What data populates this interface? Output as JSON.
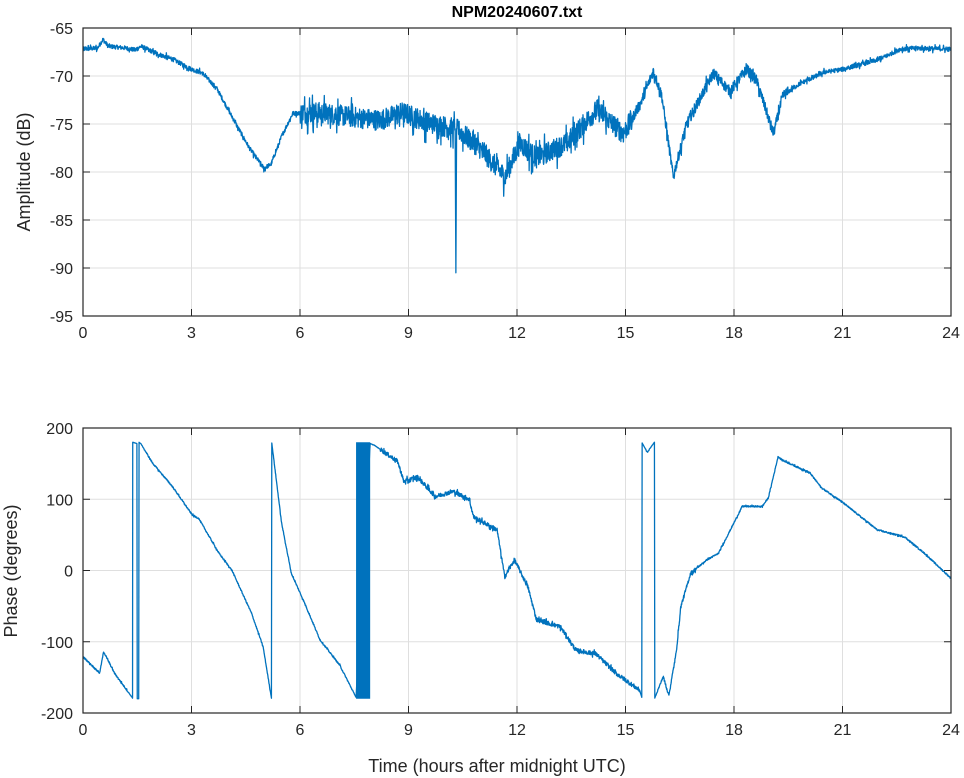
{
  "chart_data": [
    {
      "type": "line",
      "title": "NPM20240607.txt",
      "xlabel": "",
      "ylabel": "Amplitude (dB)",
      "xlim": [
        0,
        24
      ],
      "ylim": [
        -95,
        -65
      ],
      "xticks": [
        0,
        3,
        6,
        9,
        12,
        15,
        18,
        21,
        24
      ],
      "yticks": [
        -95,
        -90,
        -85,
        -80,
        -75,
        -70,
        -65
      ],
      "grid": true,
      "color": "#0072BD",
      "series": [
        {
          "name": "Amplitude",
          "points": [
            [
              0,
              -67.2
            ],
            [
              0.4,
              -67.1
            ],
            [
              0.55,
              -66.2
            ],
            [
              0.7,
              -66.9
            ],
            [
              1.2,
              -67.1
            ],
            [
              1.45,
              -67.3
            ],
            [
              1.6,
              -66.9
            ],
            [
              2,
              -67.6
            ],
            [
              2.5,
              -68.3
            ],
            [
              3,
              -69.3
            ],
            [
              3.3,
              -69.7
            ],
            [
              3.7,
              -71.3
            ],
            [
              4.2,
              -74.8
            ],
            [
              4.6,
              -77.5
            ],
            [
              5,
              -79.6
            ],
            [
              5.2,
              -79.2
            ],
            [
              5.5,
              -76.2
            ],
            [
              5.8,
              -73.9
            ],
            [
              6.5,
              -73.8
            ],
            [
              7.5,
              -74.3
            ],
            [
              8.2,
              -74.6
            ],
            [
              8.85,
              -73.8
            ],
            [
              9.5,
              -74.8
            ],
            [
              10.05,
              -75.3
            ],
            [
              10.29,
              -75.5
            ],
            [
              10.31,
              -90.5
            ],
            [
              10.33,
              -75.5
            ],
            [
              10.97,
              -77.5
            ],
            [
              11.67,
              -80.5
            ],
            [
              12.08,
              -77
            ],
            [
              12.54,
              -78.5
            ],
            [
              13.37,
              -77
            ],
            [
              14.21,
              -73.5
            ],
            [
              14.94,
              -76
            ],
            [
              15.4,
              -73
            ],
            [
              15.77,
              -69.5
            ],
            [
              16.0,
              -72
            ],
            [
              16.32,
              -80.5
            ],
            [
              16.69,
              -75
            ],
            [
              17.43,
              -69.7
            ],
            [
              17.89,
              -71.6
            ],
            [
              18.35,
              -69.3
            ],
            [
              18.62,
              -70.4
            ],
            [
              19.09,
              -76
            ],
            [
              19.36,
              -72
            ],
            [
              19.82,
              -70.8
            ],
            [
              20.5,
              -69.6
            ],
            [
              21,
              -69.3
            ],
            [
              22,
              -68.3
            ],
            [
              22.6,
              -67.2
            ],
            [
              23,
              -67.1
            ],
            [
              24,
              -67.2
            ]
          ]
        }
      ]
    },
    {
      "type": "line",
      "title": "",
      "xlabel": "Time (hours after midnight UTC)",
      "ylabel": "Phase (degrees)",
      "xlim": [
        0,
        24
      ],
      "ylim": [
        -200,
        200
      ],
      "xticks": [
        0,
        3,
        6,
        9,
        12,
        15,
        18,
        21,
        24
      ],
      "yticks": [
        -200,
        -100,
        0,
        100,
        200
      ],
      "grid": true,
      "color": "#0072BD",
      "dense_wrap_interval": [
        7.55,
        7.94
      ],
      "series": [
        {
          "name": "Phase",
          "points": [
            [
              0,
              -121
            ],
            [
              0.46,
              -144
            ],
            [
              0.57,
              -114
            ],
            [
              0.87,
              -144
            ],
            [
              1.37,
              -179
            ],
            [
              1.375,
              180
            ],
            [
              1.49,
              178
            ],
            [
              1.5,
              -180
            ],
            [
              1.54,
              -180
            ],
            [
              1.55,
              180
            ],
            [
              1.6,
              178
            ],
            [
              1.92,
              151
            ],
            [
              2.47,
              118
            ],
            [
              3.02,
              78
            ],
            [
              3.2,
              73
            ],
            [
              3.75,
              25
            ],
            [
              4.12,
              0
            ],
            [
              4.66,
              -60
            ],
            [
              4.98,
              -107
            ],
            [
              5.21,
              -179
            ],
            [
              5.22,
              179
            ],
            [
              5.49,
              67
            ],
            [
              5.76,
              -4
            ],
            [
              6.13,
              -46
            ],
            [
              6.55,
              -97
            ],
            [
              7.1,
              -133
            ],
            [
              7.55,
              -178
            ],
            [
              7.94,
              178
            ],
            [
              8.05,
              176
            ],
            [
              8.7,
              153
            ],
            [
              8.87,
              125
            ],
            [
              9.25,
              131
            ],
            [
              9.74,
              104
            ],
            [
              10.24,
              111
            ],
            [
              10.68,
              100
            ],
            [
              10.8,
              75
            ],
            [
              11.45,
              57
            ],
            [
              11.66,
              -9
            ],
            [
              11.93,
              15
            ],
            [
              12.3,
              -23
            ],
            [
              12.54,
              -69
            ],
            [
              13.2,
              -79
            ],
            [
              13.63,
              -112
            ],
            [
              14.18,
              -117
            ],
            [
              14.73,
              -144
            ],
            [
              15.39,
              -168
            ],
            [
              15.45,
              -178
            ],
            [
              15.46,
              179
            ],
            [
              15.6,
              166
            ],
            [
              15.8,
              180
            ],
            [
              15.81,
              -179
            ],
            [
              16.04,
              -149
            ],
            [
              16.2,
              -175
            ],
            [
              16.4,
              -116
            ],
            [
              16.53,
              -51
            ],
            [
              16.8,
              -4
            ],
            [
              17.25,
              15
            ],
            [
              17.57,
              24
            ],
            [
              17.9,
              57
            ],
            [
              18.23,
              90
            ],
            [
              18.78,
              90
            ],
            [
              18.95,
              102
            ],
            [
              19.22,
              160
            ],
            [
              19.33,
              155
            ],
            [
              20.1,
              137
            ],
            [
              20.42,
              116
            ],
            [
              20.97,
              97
            ],
            [
              21.96,
              57
            ],
            [
              22.72,
              47
            ],
            [
              23.27,
              24
            ],
            [
              24,
              -11
            ]
          ]
        }
      ]
    }
  ]
}
